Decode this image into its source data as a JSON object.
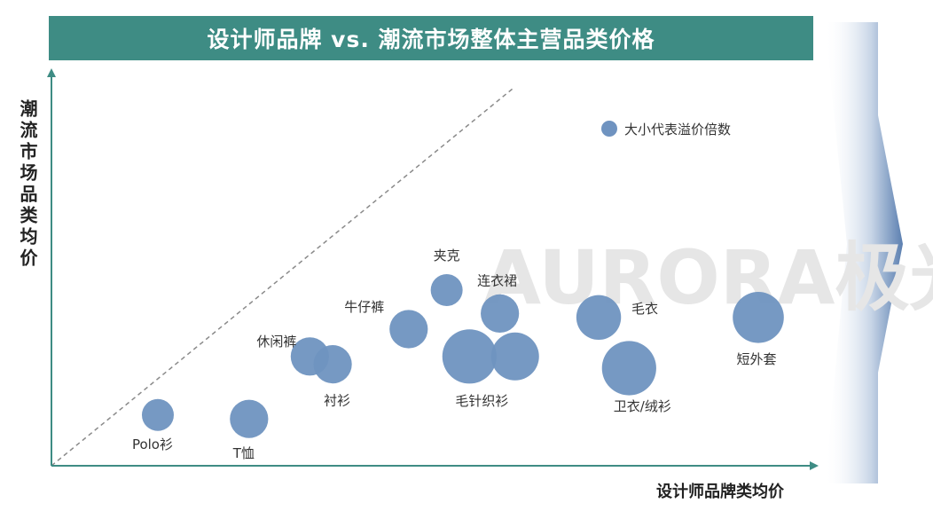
{
  "title": "设计师品牌 vs. 潮流市场整体主营品类价格",
  "colors": {
    "title_bg": "#3e8c84",
    "bubble": "#6f93c0",
    "axis": "#3e8c84"
  },
  "chart_data": {
    "type": "scatter",
    "title": "设计师品牌 vs. 潮流市场整体主营品类价格",
    "xlabel": "设计师品牌类均价",
    "ylabel": "潮流市场品类均价",
    "legend": {
      "label": "大小代表溢价倍数",
      "position": "top-right"
    },
    "watermark": "AURORA极光",
    "points": [
      {
        "name": "Polo衫",
        "x": 0.14,
        "y": 0.13,
        "size": 1.0
      },
      {
        "name": "T恤",
        "x": 0.26,
        "y": 0.12,
        "size": 1.2
      },
      {
        "name": "休闲裤",
        "x": 0.34,
        "y": 0.28,
        "size": 1.2
      },
      {
        "name": "衬衫",
        "x": 0.37,
        "y": 0.26,
        "size": 1.2
      },
      {
        "name": "牛仔裤",
        "x": 0.47,
        "y": 0.35,
        "size": 1.2
      },
      {
        "name": "夹克",
        "x": 0.52,
        "y": 0.45,
        "size": 1.0
      },
      {
        "name": "连衣裙",
        "x": 0.59,
        "y": 0.39,
        "size": 1.2
      },
      {
        "name": "毛针织衫",
        "x": 0.55,
        "y": 0.28,
        "size": 1.7
      },
      {
        "name": "毛针织衫",
        "x": 0.61,
        "y": 0.28,
        "size": 1.5
      },
      {
        "name": "毛衣",
        "x": 0.72,
        "y": 0.38,
        "size": 1.4
      },
      {
        "name": "卫衣/绒衫",
        "x": 0.76,
        "y": 0.25,
        "size": 1.7
      },
      {
        "name": "短外套",
        "x": 0.93,
        "y": 0.38,
        "size": 1.6
      }
    ],
    "reference_line": "y = x (dashed)",
    "xlim": [
      0,
      1
    ],
    "ylim": [
      0,
      1
    ]
  }
}
